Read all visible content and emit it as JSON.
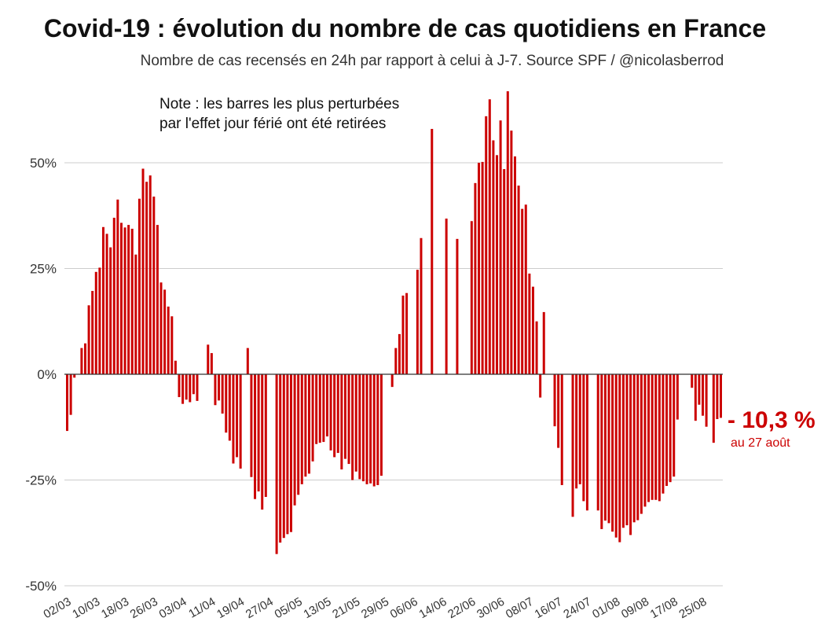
{
  "chart_data": {
    "type": "bar",
    "title": "Covid-19 : évolution du nombre de cas quotidiens en France",
    "subtitle": "Nombre de cas recensés en 24h par rapport à celui à J-7. Source SPF / @nicolasberrod",
    "note_lines": [
      "Note : les barres les plus perturbées",
      "par l'effet jour férié ont été retirées"
    ],
    "xlabel": "",
    "ylabel": "",
    "ylim": [
      -0.5,
      0.75
    ],
    "grid": true,
    "start_date": "02/03",
    "end_date": "27/08",
    "y_tick_values": [
      0.5,
      0.25,
      0,
      -0.25,
      -0.5
    ],
    "y_tick_labels": [
      "50%",
      "25%",
      "0%",
      "-25%",
      "-50%"
    ],
    "x_tick_labels": [
      "02/03",
      "10/03",
      "18/03",
      "26/03",
      "03/04",
      "11/04",
      "19/04",
      "27/04",
      "05/05",
      "13/05",
      "21/05",
      "29/05",
      "06/06",
      "14/06",
      "22/06",
      "30/06",
      "08/07",
      "16/07",
      "24/07",
      "01/08",
      "09/08",
      "17/08",
      "25/08"
    ],
    "color": "#cc0000",
    "last_value_label": "- 10,3 %",
    "last_value_sublabel": "au 27 août",
    "values": [
      -0.134,
      -0.096,
      -0.008,
      null,
      0.062,
      0.073,
      0.163,
      0.197,
      0.242,
      0.252,
      0.348,
      0.332,
      0.3,
      0.37,
      0.413,
      0.358,
      0.347,
      0.353,
      0.344,
      0.283,
      0.415,
      0.486,
      0.455,
      0.47,
      0.42,
      0.353,
      0.217,
      0.2,
      0.16,
      0.137,
      0.032,
      -0.054,
      -0.07,
      -0.06,
      -0.066,
      -0.047,
      -0.063,
      null,
      null,
      0.07,
      0.05,
      -0.073,
      -0.062,
      -0.093,
      -0.138,
      -0.157,
      -0.211,
      -0.196,
      -0.223,
      null,
      0.062,
      -0.243,
      -0.295,
      -0.277,
      -0.32,
      -0.29,
      null,
      null,
      -0.425,
      -0.398,
      -0.387,
      -0.378,
      -0.373,
      -0.31,
      -0.285,
      -0.26,
      -0.242,
      -0.235,
      -0.206,
      -0.165,
      -0.162,
      -0.16,
      -0.147,
      -0.18,
      -0.196,
      -0.186,
      -0.225,
      -0.2,
      -0.212,
      -0.25,
      -0.23,
      -0.248,
      -0.253,
      -0.26,
      -0.258,
      -0.265,
      -0.262,
      -0.24,
      null,
      null,
      -0.03,
      0.062,
      0.095,
      0.186,
      0.192,
      null,
      null,
      0.247,
      0.322,
      null,
      null,
      0.58,
      null,
      null,
      null,
      0.368,
      null,
      null,
      0.32,
      null,
      null,
      null,
      0.362,
      0.452,
      0.5,
      0.502,
      0.61,
      0.65,
      0.553,
      0.518,
      0.6,
      0.485,
      0.669,
      0.576,
      0.515,
      0.446,
      0.391,
      0.401,
      0.238,
      0.207,
      0.125,
      -0.055,
      0.147,
      null,
      null,
      -0.123,
      -0.174,
      -0.262,
      null,
      null,
      -0.337,
      -0.27,
      -0.26,
      -0.3,
      -0.322,
      null,
      null,
      -0.322,
      -0.366,
      -0.346,
      -0.352,
      -0.372,
      -0.386,
      -0.397,
      -0.363,
      -0.357,
      -0.38,
      -0.35,
      -0.345,
      -0.33,
      -0.313,
      -0.302,
      -0.297,
      -0.297,
      -0.3,
      -0.282,
      -0.264,
      -0.255,
      -0.242,
      -0.107,
      null,
      null,
      null,
      -0.032,
      -0.11,
      -0.072,
      -0.098,
      -0.124,
      null,
      -0.162,
      -0.106,
      -0.103
    ]
  }
}
